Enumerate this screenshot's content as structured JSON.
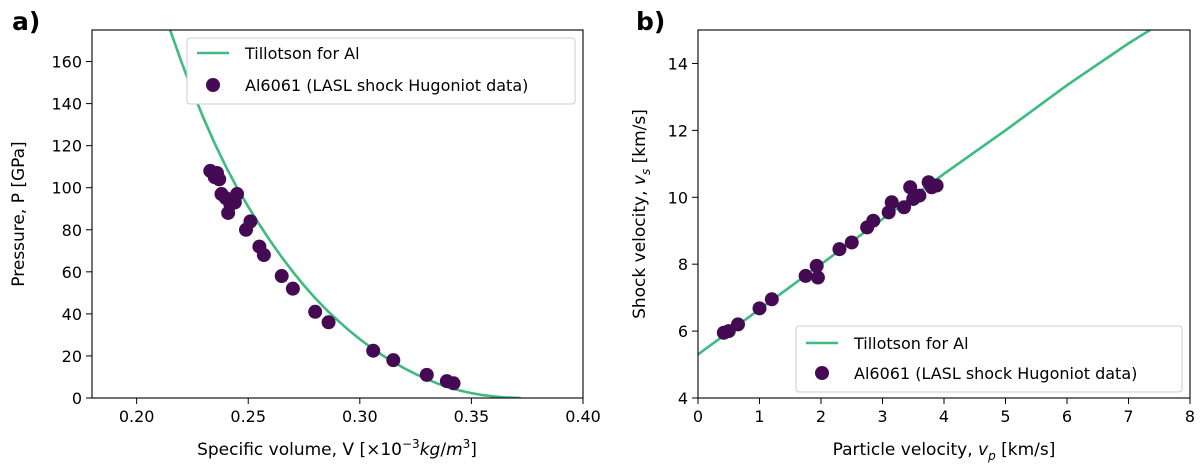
{
  "colors": {
    "model": "#3dbb80",
    "data": "#440b54"
  },
  "chart_data": [
    {
      "type": "scatter",
      "panel_label": "a)",
      "xlabel": "Specific volume, V [×10⁻³kg/m³]",
      "ylabel": "Pressure, P [GPa]",
      "xlim": [
        0.18,
        0.4
      ],
      "ylim": [
        0,
        175
      ],
      "x_ticks": [
        0.2,
        0.25,
        0.3,
        0.35,
        0.4
      ],
      "x_tick_labels": [
        "0.20",
        "0.25",
        "0.30",
        "0.35",
        "0.40"
      ],
      "y_ticks": [
        0,
        20,
        40,
        60,
        80,
        100,
        120,
        140,
        160
      ],
      "y_tick_labels": [
        "0",
        "20",
        "40",
        "60",
        "80",
        "100",
        "120",
        "140",
        "160"
      ],
      "legend_position": "top-right",
      "series": [
        {
          "name": "Tillotson for Al",
          "kind": "line",
          "x": [
            0.215,
            0.22,
            0.225,
            0.23,
            0.235,
            0.24,
            0.245,
            0.25,
            0.255,
            0.26,
            0.265,
            0.27,
            0.275,
            0.28,
            0.285,
            0.29,
            0.295,
            0.3,
            0.305,
            0.31,
            0.315,
            0.32,
            0.325,
            0.33,
            0.335,
            0.34,
            0.345,
            0.35,
            0.355,
            0.36,
            0.365,
            0.372
          ],
          "y": [
            175,
            160,
            146,
            133,
            121,
            110,
            100,
            91,
            82.5,
            74.5,
            67,
            60,
            53.5,
            47.5,
            42,
            37,
            32.3,
            28,
            24,
            20.4,
            17.1,
            14.1,
            11.4,
            9.0,
            6.8,
            5.0,
            3.5,
            2.3,
            1.4,
            0.75,
            0.3,
            0
          ]
        },
        {
          "name": "Al6061 (LASL shock Hugoniot data)",
          "kind": "scatter",
          "x": [
            0.233,
            0.235,
            0.237,
            0.236,
            0.238,
            0.24,
            0.241,
            0.242,
            0.244,
            0.245,
            0.249,
            0.251,
            0.255,
            0.257,
            0.265,
            0.27,
            0.28,
            0.286,
            0.306,
            0.315,
            0.33,
            0.339,
            0.342
          ],
          "y": [
            108,
            105,
            104,
            107,
            97,
            95,
            88,
            92,
            93,
            97,
            80,
            84,
            72,
            68,
            58,
            52,
            41,
            36,
            22.5,
            18,
            11,
            8,
            7
          ]
        }
      ]
    },
    {
      "type": "scatter",
      "panel_label": "b)",
      "xlabel": "Particle velocity, vp [km/s]",
      "ylabel": "Shock velocity, vs [km/s]",
      "xlim": [
        0,
        8
      ],
      "ylim": [
        4,
        15
      ],
      "x_ticks": [
        0,
        1,
        2,
        3,
        4,
        5,
        6,
        7,
        8
      ],
      "x_tick_labels": [
        "0",
        "1",
        "2",
        "3",
        "4",
        "5",
        "6",
        "7",
        "8"
      ],
      "y_ticks": [
        4,
        6,
        8,
        10,
        12,
        14
      ],
      "y_tick_labels": [
        "4",
        "6",
        "8",
        "10",
        "12",
        "14"
      ],
      "legend_position": "bottom-right",
      "series": [
        {
          "name": "Tillotson for Al",
          "kind": "line",
          "x": [
            0,
            1,
            2,
            3,
            4,
            5,
            6,
            7,
            7.35
          ],
          "y": [
            5.3,
            6.65,
            8.0,
            9.35,
            10.7,
            12.0,
            13.35,
            14.6,
            15.0
          ]
        },
        {
          "name": "Al6061 (LASL shock Hugoniot data)",
          "kind": "scatter",
          "x": [
            0.42,
            0.5,
            0.65,
            1.0,
            1.2,
            1.75,
            1.93,
            1.95,
            2.3,
            2.5,
            2.75,
            2.85,
            3.1,
            3.15,
            3.35,
            3.45,
            3.5,
            3.6,
            3.75,
            3.8,
            3.88
          ],
          "y": [
            5.95,
            6.0,
            6.2,
            6.68,
            6.95,
            7.65,
            7.95,
            7.6,
            8.45,
            8.65,
            9.1,
            9.3,
            9.55,
            9.85,
            9.7,
            10.3,
            9.95,
            10.05,
            10.45,
            10.3,
            10.35
          ]
        }
      ]
    }
  ]
}
